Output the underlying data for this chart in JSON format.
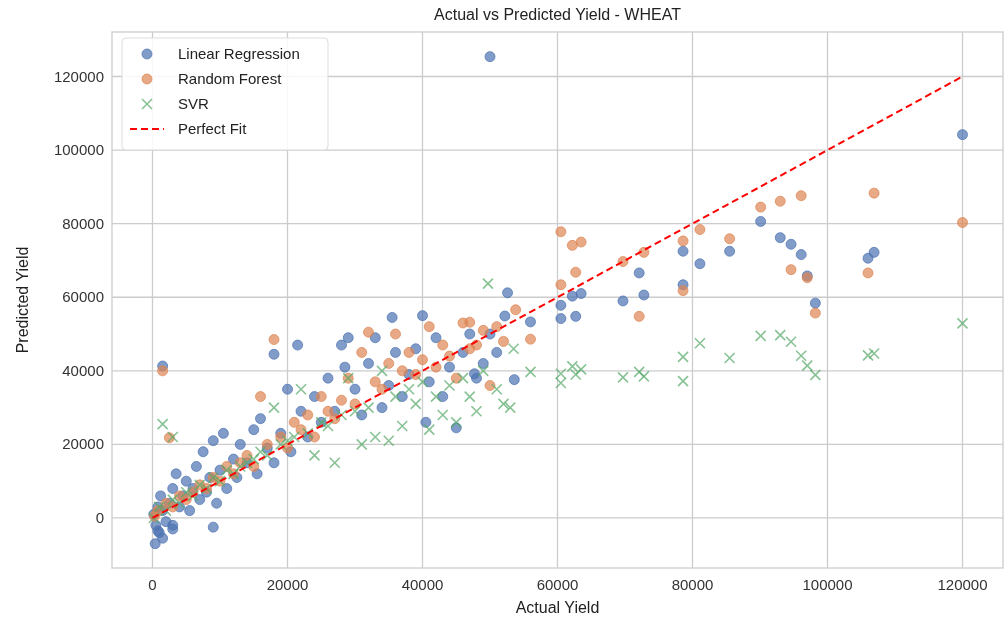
{
  "chart_data": {
    "type": "scatter",
    "title": "Actual vs Predicted Yield - WHEAT",
    "xlabel": "Actual Yield",
    "ylabel": "Predicted Yield",
    "xlim": [
      -6000,
      126000
    ],
    "ylim": [
      -13600,
      132100
    ],
    "xticks": [
      0,
      20000,
      40000,
      60000,
      80000,
      100000,
      120000
    ],
    "yticks": [
      0,
      20000,
      40000,
      60000,
      80000,
      100000,
      120000
    ],
    "grid": true,
    "legend": "top left",
    "series": [
      {
        "name": "Linear Regression",
        "color": "#4c72b0",
        "marker": "circle",
        "x": [
          400,
          1500,
          3000,
          800,
          9000,
          200,
          500,
          800,
          1000,
          1200,
          1500,
          2000,
          2500,
          3000,
          3000,
          3500,
          4000,
          4500,
          5000,
          5500,
          6000,
          6500,
          7000,
          7500,
          8000,
          8500,
          9000,
          9500,
          10000,
          10500,
          11000,
          12000,
          12500,
          13000,
          14000,
          15000,
          15500,
          16000,
          17000,
          18000,
          18000,
          19000,
          20000,
          20500,
          21500,
          22000,
          23000,
          24000,
          25000,
          26000,
          27000,
          28000,
          28500,
          29000,
          30000,
          31000,
          32000,
          33000,
          34000,
          35000,
          35500,
          36000,
          37000,
          38000,
          39000,
          40000,
          40500,
          41000,
          42000,
          43000,
          44000,
          45000,
          46000,
          47000,
          48000,
          49000,
          50000,
          51000,
          1500,
          50000,
          47700,
          52200,
          52600,
          53600,
          56000,
          60500,
          60500,
          62200,
          62700,
          63500,
          69700,
          72100,
          72800,
          78600,
          78600,
          81100,
          85500,
          90100,
          93000,
          94600,
          96100,
          97000,
          98200,
          106000,
          106900,
          120000
        ],
        "values": [
          -7000,
          -5500,
          -3000,
          -3500,
          -2500,
          1000,
          -2000,
          3000,
          -4000,
          6000,
          2000,
          -1000,
          4000,
          8000,
          -2000,
          12000,
          3000,
          6000,
          10000,
          2000,
          8000,
          14000,
          5000,
          18000,
          7000,
          11000,
          21000,
          4000,
          13000,
          23000,
          8000,
          16000,
          11000,
          20000,
          15000,
          24000,
          12000,
          27000,
          19000,
          15000,
          44500,
          23000,
          35000,
          18000,
          47000,
          29000,
          22000,
          33000,
          26000,
          38000,
          29000,
          47000,
          41000,
          49000,
          35000,
          28000,
          42000,
          49000,
          30000,
          36000,
          54500,
          45000,
          33000,
          39000,
          46000,
          55000,
          26000,
          37000,
          49000,
          33000,
          41000,
          24500,
          45000,
          50000,
          38000,
          42000,
          50000,
          45000,
          41300,
          125400,
          39200,
          54900,
          61200,
          37600,
          53300,
          57800,
          54200,
          60300,
          54800,
          61000,
          59000,
          66600,
          60600,
          72500,
          63400,
          69100,
          72500,
          80600,
          76200,
          74400,
          71600,
          65800,
          58400,
          70600,
          72200,
          104200
        ]
      },
      {
        "name": "Random Forest",
        "color": "#dd8452",
        "marker": "circle",
        "x": [
          300,
          800,
          1500,
          2500,
          2000,
          3000,
          4000,
          5000,
          6000,
          7000,
          8000,
          9000,
          10000,
          11000,
          12000,
          13000,
          14000,
          15000,
          16000,
          17000,
          18000,
          19000,
          20000,
          21000,
          22000,
          23000,
          24000,
          25000,
          26000,
          27000,
          28000,
          29000,
          30000,
          31000,
          32000,
          33000,
          34000,
          35000,
          36000,
          37000,
          38000,
          39000,
          40000,
          41000,
          42000,
          43000,
          44000,
          45000,
          46000,
          47000,
          48000,
          49000,
          50000,
          51000,
          52000,
          47000,
          53800,
          56000,
          60500,
          60500,
          62200,
          62700,
          63500,
          69700,
          72100,
          72800,
          78600,
          78600,
          81100,
          85500,
          90100,
          93000,
          94600,
          96100,
          97000,
          98200,
          106000,
          106900,
          120000
        ],
        "values": [
          500,
          2000,
          40000,
          21800,
          4000,
          3000,
          6000,
          5000,
          7000,
          9000,
          8000,
          11000,
          10000,
          14000,
          12000,
          15000,
          17000,
          14000,
          33000,
          20000,
          48500,
          22000,
          19000,
          26000,
          24000,
          28000,
          22000,
          33000,
          29000,
          27000,
          32000,
          38000,
          31000,
          45000,
          50500,
          37000,
          35000,
          42000,
          50000,
          40000,
          45000,
          39000,
          43000,
          52000,
          41000,
          47000,
          44000,
          38000,
          53000,
          46000,
          47000,
          51000,
          36000,
          52000,
          48000,
          53200,
          56600,
          48600,
          77800,
          63400,
          74100,
          66800,
          75000,
          69700,
          54800,
          72200,
          75300,
          61800,
          78400,
          75900,
          84500,
          86100,
          67500,
          87600,
          65300,
          55700,
          66600,
          88300,
          80300
        ]
      },
      {
        "name": "SVR",
        "color": "#55a868",
        "marker": "cross",
        "x": [
          200,
          1500,
          1000,
          2000,
          3000,
          3000,
          4000,
          5000,
          6000,
          7000,
          8000,
          9000,
          10000,
          11000,
          12000,
          13000,
          14000,
          15000,
          16000,
          17000,
          18000,
          19000,
          20000,
          21000,
          22000,
          23000,
          24000,
          25000,
          26000,
          27000,
          28000,
          29000,
          30000,
          31000,
          32000,
          33000,
          34000,
          35000,
          36000,
          37000,
          38000,
          39000,
          40000,
          41000,
          42000,
          43000,
          44000,
          45000,
          46000,
          47000,
          48000,
          49000,
          49700,
          51000,
          52000,
          53000,
          53500,
          56000,
          60500,
          60500,
          62200,
          62700,
          63500,
          69700,
          72100,
          72800,
          78600,
          78600,
          81100,
          85500,
          90100,
          93000,
          94600,
          96100,
          97000,
          98200,
          106000,
          106900,
          120000
        ],
        "values": [
          0,
          25500,
          3000,
          2000,
          22000,
          5000,
          4000,
          7000,
          6000,
          9000,
          8000,
          11000,
          10000,
          13000,
          12000,
          14000,
          15000,
          16000,
          18000,
          17000,
          30000,
          20000,
          21000,
          22000,
          35000,
          23000,
          17000,
          26000,
          25000,
          15000,
          28000,
          38000,
          29000,
          20000,
          30000,
          22000,
          40000,
          21000,
          33000,
          25000,
          35000,
          31000,
          37000,
          24000,
          33000,
          28000,
          36000,
          26000,
          38000,
          33000,
          29000,
          40000,
          63700,
          35000,
          31000,
          30000,
          46000,
          39700,
          39200,
          36700,
          41200,
          39000,
          40400,
          38200,
          39700,
          38500,
          43800,
          37200,
          47500,
          43500,
          49500,
          49700,
          47900,
          44100,
          41400,
          38900,
          44200,
          44700,
          52900
        ]
      },
      {
        "name": "Perfect Fit",
        "type": "line",
        "color": "#ff0000",
        "line_style": "dashed",
        "marker": "none",
        "x": [
          0,
          120000
        ],
        "values": [
          0,
          120000
        ]
      }
    ]
  }
}
